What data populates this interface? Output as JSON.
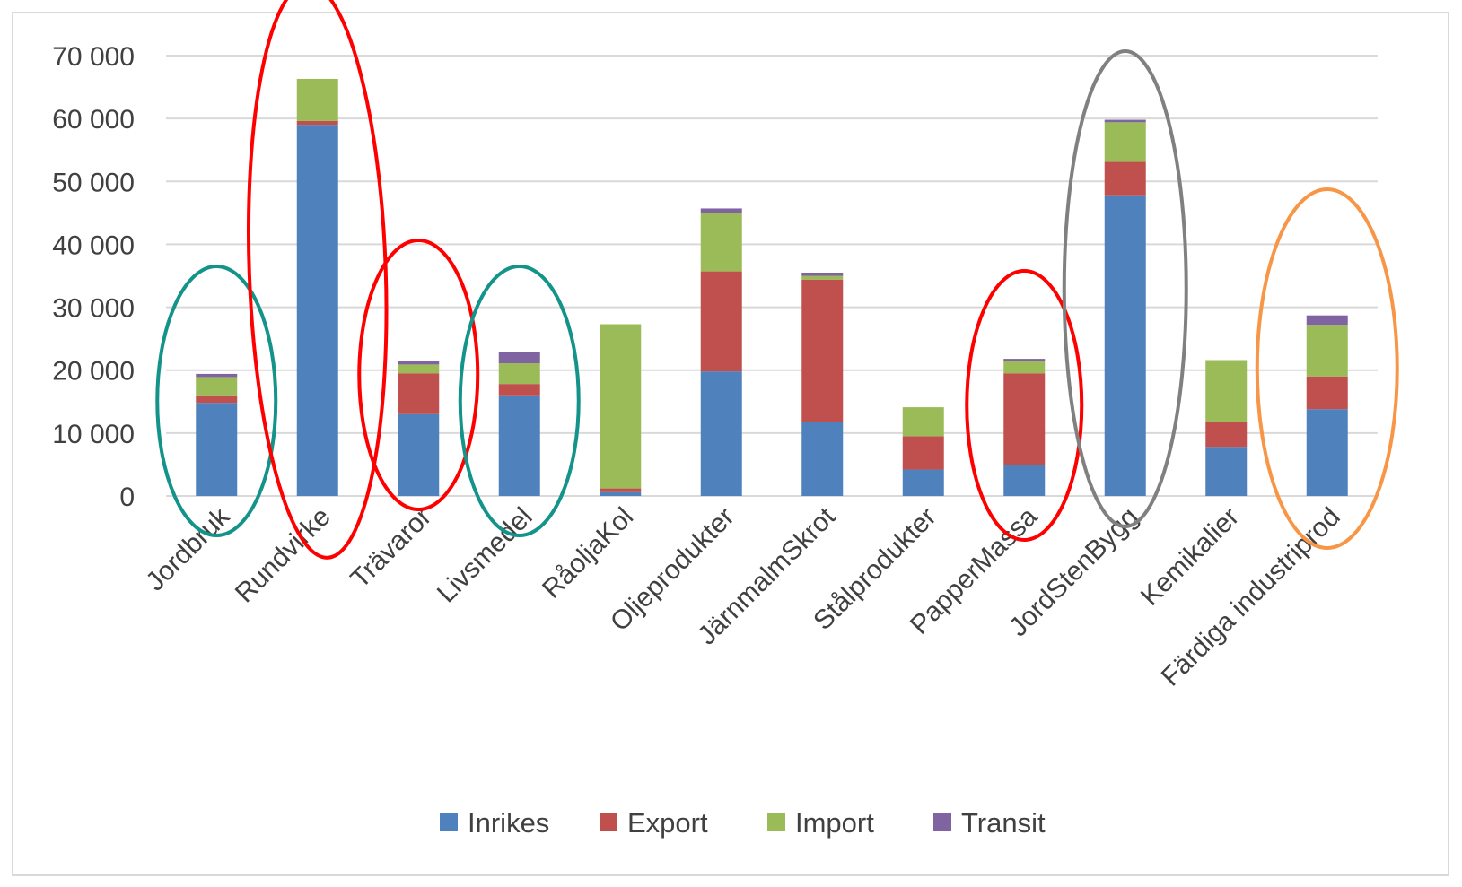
{
  "chart_data": {
    "type": "bar",
    "stacked": true,
    "categories": [
      "Jordbruk",
      "Rundvirke",
      "Trävaror",
      "Livsmedel",
      "RåoljaKol",
      "Oljeprodukter",
      "JärnmalmSkrot",
      "Stålprodukter",
      "PapperMassa",
      "JordStenBygg",
      "Kemikalier",
      "Färdiga industriprod"
    ],
    "series": [
      {
        "name": "Inrikes",
        "color": "#4F81BD",
        "values": [
          14800,
          59000,
          13000,
          16000,
          600,
          19800,
          11700,
          4200,
          4900,
          47800,
          7800,
          13800
        ]
      },
      {
        "name": "Export",
        "color": "#C0504D",
        "values": [
          1200,
          600,
          6500,
          1800,
          600,
          15900,
          22700,
          5300,
          14600,
          5300,
          4000,
          5200
        ]
      },
      {
        "name": "Import",
        "color": "#9BBB59",
        "values": [
          2900,
          6700,
          1400,
          3300,
          26100,
          9300,
          600,
          4600,
          1900,
          6300,
          9800,
          8200
        ]
      },
      {
        "name": "Transit",
        "color": "#8064A2",
        "values": [
          500,
          0,
          600,
          1800,
          0,
          700,
          500,
          0,
          400,
          400,
          0,
          1500
        ]
      }
    ],
    "y_ticks": [
      "0",
      "10 000",
      "20 000",
      "30 000",
      "40 000",
      "50 000",
      "60 000",
      "70 000"
    ],
    "ylim": [
      0,
      70000
    ],
    "grid": true,
    "legend_position": "bottom",
    "annotations": [
      {
        "shape": "ellipse",
        "color": "#13938A",
        "categories": [
          "Jordbruk"
        ]
      },
      {
        "shape": "ellipse",
        "color": "#FF0000",
        "categories": [
          "Rundvirke"
        ]
      },
      {
        "shape": "ellipse",
        "color": "#FF0000",
        "categories": [
          "Trävaror"
        ]
      },
      {
        "shape": "ellipse",
        "color": "#13938A",
        "categories": [
          "Livsmedel"
        ]
      },
      {
        "shape": "ellipse",
        "color": "#FF0000",
        "categories": [
          "PapperMassa"
        ]
      },
      {
        "shape": "ellipse",
        "color": "#808080",
        "categories": [
          "JordStenBygg"
        ]
      },
      {
        "shape": "ellipse",
        "color": "#F79646",
        "categories": [
          "Färdiga industriprod"
        ]
      }
    ]
  }
}
